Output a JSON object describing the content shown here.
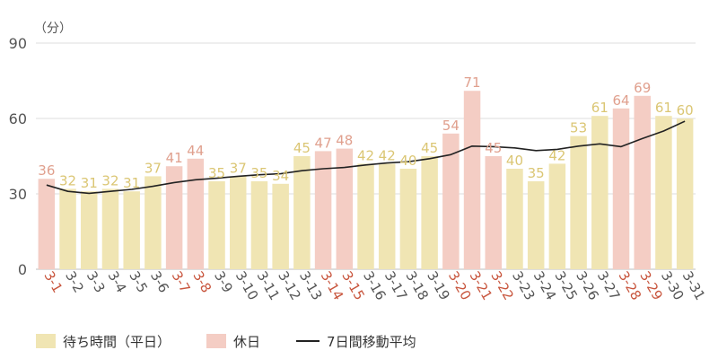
{
  "chart_data": {
    "type": "bar",
    "unit_label": "（分）",
    "categories": [
      "3-1",
      "3-2",
      "3-3",
      "3-4",
      "3-5",
      "3-6",
      "3-7",
      "3-8",
      "3-9",
      "3-10",
      "3-11",
      "3-12",
      "3-13",
      "3-14",
      "3-15",
      "3-16",
      "3-17",
      "3-18",
      "3-19",
      "3-20",
      "3-21",
      "3-22",
      "3-23",
      "3-24",
      "3-25",
      "3-26",
      "3-27",
      "3-28",
      "3-29",
      "3-30",
      "3-31"
    ],
    "holiday": [
      true,
      false,
      false,
      false,
      false,
      false,
      true,
      true,
      false,
      false,
      false,
      false,
      false,
      true,
      true,
      false,
      false,
      false,
      false,
      true,
      true,
      true,
      false,
      false,
      false,
      false,
      false,
      true,
      true,
      false,
      false
    ],
    "series": [
      {
        "name": "待ち時間（平日）",
        "type": "bar",
        "values": [
          36,
          32,
          31,
          32,
          31,
          37,
          41,
          44,
          35,
          37,
          35,
          34,
          45,
          47,
          48,
          42,
          42,
          40,
          45,
          54,
          71,
          45,
          40,
          35,
          42,
          53,
          61,
          64,
          69,
          61,
          60
        ]
      },
      {
        "name": "7日間移動平均",
        "type": "line",
        "values": [
          33.5,
          31.0,
          30.2,
          31.0,
          31.8,
          33.0,
          34.5,
          35.6,
          36.2,
          37.0,
          37.6,
          38.0,
          39.2,
          40.0,
          40.5,
          41.5,
          42.3,
          42.8,
          44.0,
          45.6,
          49.0,
          48.8,
          48.3,
          47.2,
          47.7,
          49.0,
          49.9,
          48.8,
          52.0,
          55.0,
          58.9
        ]
      }
    ],
    "legend": [
      "待ち時間（平日）",
      "休日",
      "7日間移動平均"
    ],
    "ylim": [
      0,
      90
    ],
    "yticks": [
      0,
      30,
      60,
      90
    ],
    "grid": true,
    "legend_position": "bottom-left",
    "colors": {
      "weekday": "#f0e5b3",
      "holiday": "#f4cdc4",
      "weekday_label": "#dbc674",
      "holiday_label": "#e0a08e",
      "holiday_tick": "#c8553d",
      "tick": "#555555",
      "line": "#222222"
    }
  }
}
